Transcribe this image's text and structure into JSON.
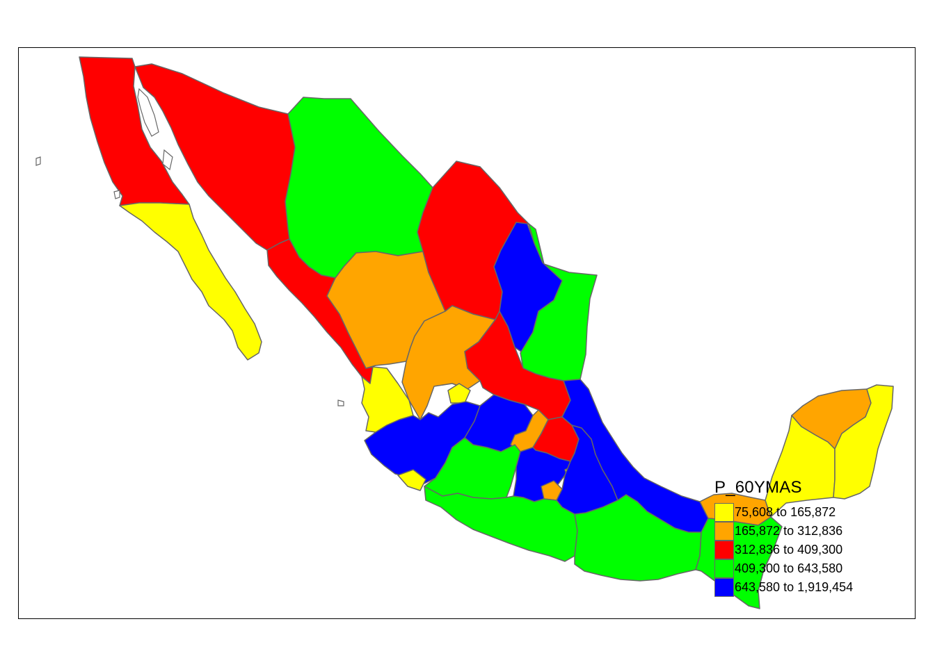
{
  "legend": {
    "title": "P_60YMAS",
    "classes": [
      {
        "label": "75,608 to 165,872",
        "color": "#ffff00"
      },
      {
        "label": "165,872 to 312,836",
        "color": "#ffa500"
      },
      {
        "label": "312,836 to 409,300",
        "color": "#ff0000"
      },
      {
        "label": "409,300 to 643,580",
        "color": "#00ff00"
      },
      {
        "label": "643,580 to 1,919,454",
        "color": "#0000ff"
      }
    ]
  },
  "colors": {
    "class1": "#ffff00",
    "class2": "#ffa500",
    "class3": "#ff0000",
    "class4": "#00ff00",
    "class5": "#0000ff",
    "border": "#666666",
    "frame": "#000000"
  }
}
